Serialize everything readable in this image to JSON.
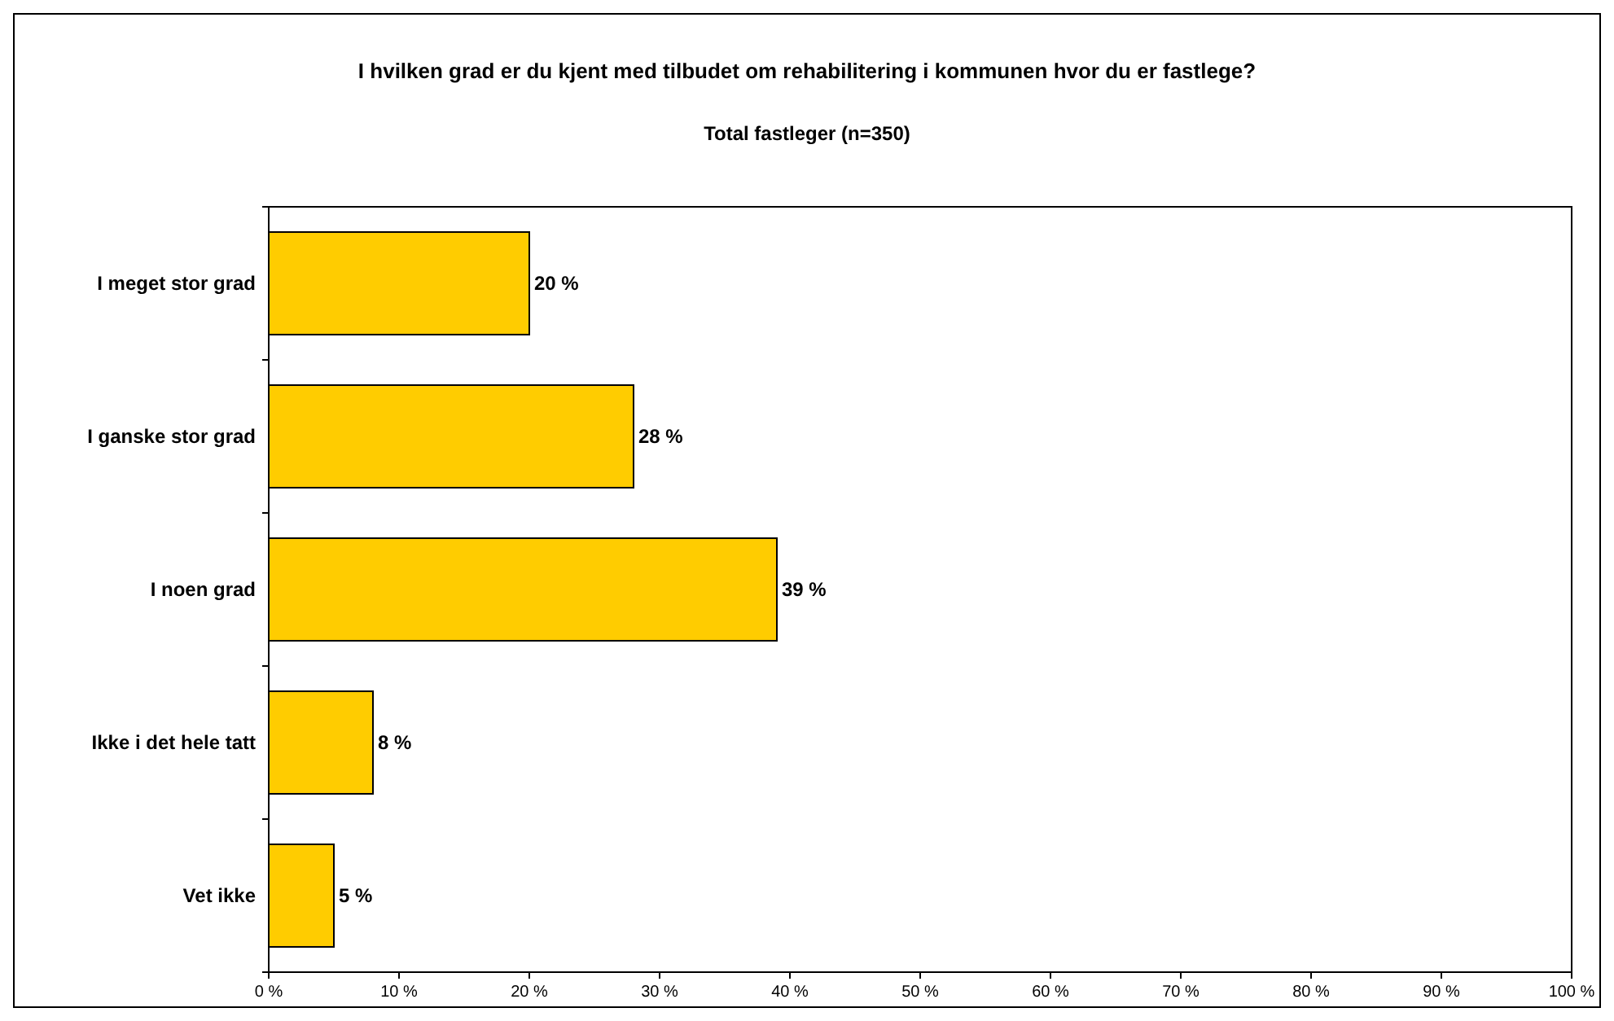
{
  "chart_data": {
    "type": "bar",
    "orientation": "horizontal",
    "title": "I hvilken grad er du kjent med tilbudet om rehabilitering i kommunen hvor du er fastlege?",
    "subtitle": "Total fastleger (n=350)",
    "categories": [
      "I meget stor grad",
      "I ganske stor grad",
      "I noen grad",
      "Ikke i det hele tatt",
      "Vet ikke"
    ],
    "values": [
      20,
      28,
      39,
      8,
      5
    ],
    "value_labels": [
      "20 %",
      "28 %",
      "39 %",
      "8 %",
      "5 %"
    ],
    "color": "#ffcc00",
    "grid": false,
    "xlim": [
      0,
      100
    ],
    "xticks": [
      {
        "value": 0,
        "label": "0 %"
      },
      {
        "value": 10,
        "label": "10 %"
      },
      {
        "value": 20,
        "label": "20 %"
      },
      {
        "value": 30,
        "label": "30 %"
      },
      {
        "value": 40,
        "label": "40 %"
      },
      {
        "value": 50,
        "label": "50 %"
      },
      {
        "value": 60,
        "label": "60 %"
      },
      {
        "value": 70,
        "label": "70 %"
      },
      {
        "value": 80,
        "label": "80 %"
      },
      {
        "value": 90,
        "label": "90 %"
      },
      {
        "value": 100,
        "label": "100 %"
      }
    ]
  }
}
